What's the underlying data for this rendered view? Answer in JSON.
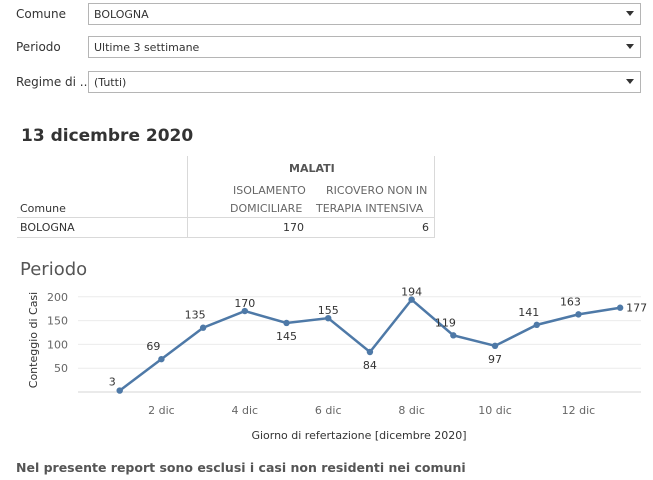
{
  "filters": [
    {
      "label": "Comune",
      "value": "BOLOGNA"
    },
    {
      "label": "Periodo",
      "value": "Ultime 3 settimane"
    },
    {
      "label": "Regime di ...",
      "value": "(Tutti)"
    }
  ],
  "date_title": "13 dicembre 2020",
  "table": {
    "group_header": "MALATI",
    "row_header": "Comune",
    "col1_line1": "ISOLAMENTO",
    "col1_line2": "DOMICILIARE",
    "col2_line1": "RICOVERO NON IN",
    "col2_line2": "TERAPIA INTENSIVA",
    "row_label": "BOLOGNA",
    "col1_value": "170",
    "col2_value": "6"
  },
  "chart_section_title": "Periodo",
  "chart_data": {
    "type": "line",
    "x": [
      1,
      2,
      3,
      4,
      5,
      6,
      7,
      8,
      9,
      10,
      11,
      12,
      13
    ],
    "values": [
      3,
      69,
      135,
      170,
      145,
      155,
      84,
      194,
      119,
      97,
      141,
      163,
      177
    ],
    "xlabel": "Giorno di refertazione [dicembre 2020]",
    "ylabel": "Conteggio di Casi",
    "x_ticks": [
      {
        "x": 2,
        "label": "2 dic"
      },
      {
        "x": 4,
        "label": "4 dic"
      },
      {
        "x": 6,
        "label": "6 dic"
      },
      {
        "x": 8,
        "label": "8 dic"
      },
      {
        "x": 10,
        "label": "10 dic"
      },
      {
        "x": 12,
        "label": "12 dic"
      }
    ],
    "y_ticks": [
      50,
      100,
      150,
      200
    ],
    "ylim": [
      0,
      210
    ],
    "xlim": [
      0,
      13.5
    ],
    "grid": "horizontal",
    "line_color": "#4e79a7"
  },
  "footer_note": "Nel presente report sono esclusi i casi non residenti nei comuni"
}
